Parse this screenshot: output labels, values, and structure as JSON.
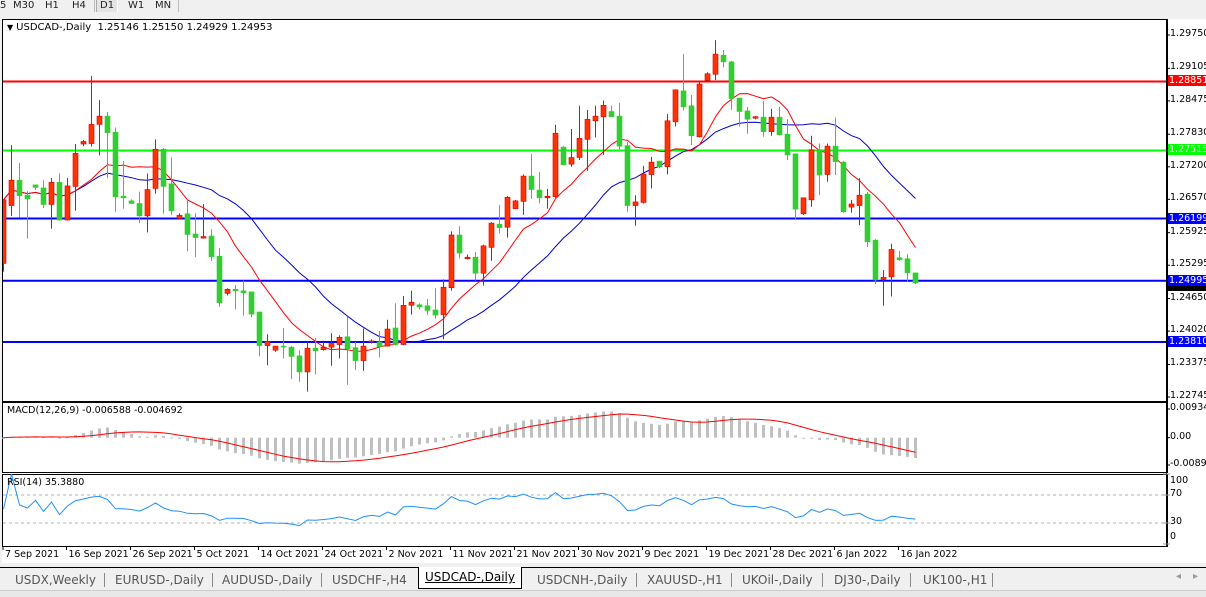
{
  "toolbar": {
    "timeframes": [
      "5",
      "M30",
      "H1",
      "H4",
      "D1",
      "W1",
      "MN"
    ],
    "active": "D1"
  },
  "chart": {
    "symbol_label": "USDCAD-,Daily",
    "ohlc_label": "1.25146 1.25150 1.24929 1.24953"
  },
  "chart_data": {
    "type": "candlestick",
    "symbol": "USDCAD-",
    "timeframe": "Daily",
    "colors": {
      "bull": "#ff3300",
      "bear": "#32cd32",
      "ma_fast": "#ff0000",
      "ma_slow": "#0000cd",
      "background": "#ffffff"
    },
    "ylim": [
      1.22745,
      1.2975
    ],
    "price_ticks": [
      "1.29750",
      "1.29105",
      "1.28475",
      "1.27830",
      "1.27200",
      "1.26570",
      "1.25925",
      "1.25295",
      "1.24650",
      "1.24020",
      "1.23375",
      "1.22745"
    ],
    "hlines": [
      {
        "price": 1.28851,
        "label": "1.28851",
        "color": "#ff0000"
      },
      {
        "price": 1.27515,
        "label": "1.27515",
        "color": "#00ff00"
      },
      {
        "price": 1.26199,
        "label": "1.26199",
        "color": "#0000ff"
      },
      {
        "price": 1.24995,
        "label": "1.24995",
        "color": "#0000ff"
      },
      {
        "price": 1.2381,
        "label": "1.23810",
        "color": "#0000ff"
      }
    ],
    "date_labels": [
      "7 Sep 2021",
      "16 Sep 2021",
      "26 Sep 2021",
      "5 Oct 2021",
      "14 Oct 2021",
      "24 Oct 2021",
      "2 Nov 2021",
      "11 Nov 2021",
      "21 Nov 2021",
      "30 Nov 2021",
      "9 Dec 2021",
      "19 Dec 2021",
      "28 Dec 2021",
      "6 Jan 2022",
      "16 Jan 2022"
    ],
    "candles_ohlc": [
      [
        1.2533,
        1.2656,
        1.2517,
        1.2656
      ],
      [
        1.2645,
        1.2762,
        1.2625,
        1.2694
      ],
      [
        1.2694,
        1.2727,
        1.2622,
        1.2664
      ],
      [
        1.2665,
        1.2673,
        1.2581,
        1.2658
      ],
      [
        1.2685,
        1.2685,
        1.2675,
        1.268
      ],
      [
        1.2679,
        1.2694,
        1.264,
        1.2647
      ],
      [
        1.2647,
        1.2698,
        1.26,
        1.269
      ],
      [
        1.269,
        1.2707,
        1.2616,
        1.2617
      ],
      [
        1.2617,
        1.2698,
        1.2616,
        1.2683
      ],
      [
        1.2682,
        1.2764,
        1.2635,
        1.2746
      ],
      [
        1.2764,
        1.2772,
        1.276,
        1.2769
      ],
      [
        1.2765,
        1.2896,
        1.2759,
        1.2802
      ],
      [
        1.2802,
        1.2849,
        1.2742,
        1.2818
      ],
      [
        1.2818,
        1.2826,
        1.2698,
        1.2786
      ],
      [
        1.2787,
        1.2796,
        1.2633,
        1.2662
      ],
      [
        1.2663,
        1.2731,
        1.2639,
        1.266
      ],
      [
        1.2654,
        1.2657,
        1.2648,
        1.2649
      ],
      [
        1.2649,
        1.2672,
        1.2611,
        1.2625
      ],
      [
        1.2625,
        1.2707,
        1.2593,
        1.2676
      ],
      [
        1.2678,
        1.2773,
        1.2668,
        1.2754
      ],
      [
        1.2754,
        1.2756,
        1.2629,
        1.2682
      ],
      [
        1.2687,
        1.2738,
        1.2627,
        1.2635
      ],
      [
        1.262,
        1.263,
        1.262,
        1.2626
      ],
      [
        1.2629,
        1.2656,
        1.2556,
        1.2589
      ],
      [
        1.259,
        1.263,
        1.2545,
        1.2583
      ],
      [
        1.2582,
        1.2648,
        1.2581,
        1.2585
      ],
      [
        1.2586,
        1.2599,
        1.2538,
        1.2546
      ],
      [
        1.2547,
        1.2563,
        1.2449,
        1.2457
      ],
      [
        1.2475,
        1.2485,
        1.2471,
        1.2483
      ],
      [
        1.2483,
        1.2491,
        1.2444,
        1.248
      ],
      [
        1.248,
        1.25,
        1.2432,
        1.2476
      ],
      [
        1.2478,
        1.2478,
        1.2429,
        1.2435
      ],
      [
        1.2439,
        1.2439,
        1.2353,
        1.2374
      ],
      [
        1.2374,
        1.2396,
        1.2336,
        1.2382
      ],
      [
        1.2365,
        1.2373,
        1.2362,
        1.2373
      ],
      [
        1.2373,
        1.2408,
        1.2349,
        1.2371
      ],
      [
        1.2371,
        1.2373,
        1.2309,
        1.2353
      ],
      [
        1.2354,
        1.2365,
        1.2304,
        1.2323
      ],
      [
        1.2323,
        1.2382,
        1.2285,
        1.2369
      ],
      [
        1.2369,
        1.2389,
        1.2318,
        1.2364
      ],
      [
        1.2366,
        1.238,
        1.2364,
        1.2371
      ],
      [
        1.2371,
        1.2398,
        1.2335,
        1.2378
      ],
      [
        1.2376,
        1.2394,
        1.2349,
        1.239
      ],
      [
        1.2391,
        1.243,
        1.2298,
        1.2368
      ],
      [
        1.237,
        1.2381,
        1.2327,
        1.2345
      ],
      [
        1.2345,
        1.2407,
        1.2325,
        1.2373
      ],
      [
        1.2381,
        1.2386,
        1.2378,
        1.2383
      ],
      [
        1.2381,
        1.2402,
        1.2351,
        1.2372
      ],
      [
        1.2373,
        1.2424,
        1.2372,
        1.2406
      ],
      [
        1.2408,
        1.2456,
        1.2374,
        1.2376
      ],
      [
        1.2376,
        1.247,
        1.2375,
        1.2452
      ],
      [
        1.2452,
        1.248,
        1.2434,
        1.2458
      ],
      [
        1.2453,
        1.2456,
        1.2444,
        1.2449
      ],
      [
        1.2451,
        1.2464,
        1.2433,
        1.2442
      ],
      [
        1.2443,
        1.2485,
        1.2426,
        1.2433
      ],
      [
        1.2434,
        1.2502,
        1.2386,
        1.2487
      ],
      [
        1.2486,
        1.2595,
        1.248,
        1.2588
      ],
      [
        1.2588,
        1.2605,
        1.2543,
        1.2553
      ],
      [
        1.2542,
        1.255,
        1.2541,
        1.2545
      ],
      [
        1.2545,
        1.2555,
        1.25,
        1.2514
      ],
      [
        1.2514,
        1.2569,
        1.249,
        1.2567
      ],
      [
        1.2564,
        1.2613,
        1.2538,
        1.2611
      ],
      [
        1.2609,
        1.2646,
        1.2591,
        1.2602
      ],
      [
        1.2603,
        1.2663,
        1.2583,
        1.2661
      ],
      [
        1.2639,
        1.2656,
        1.2638,
        1.2654
      ],
      [
        1.2653,
        1.2705,
        1.2627,
        1.2702
      ],
      [
        1.2702,
        1.2745,
        1.2658,
        1.2676
      ],
      [
        1.2675,
        1.271,
        1.2649,
        1.266
      ],
      [
        1.266,
        1.2677,
        1.2639,
        1.2663
      ],
      [
        1.2662,
        1.2801,
        1.266,
        1.2785
      ],
      [
        1.2758,
        1.276,
        1.2723,
        1.2724
      ],
      [
        1.2725,
        1.2793,
        1.272,
        1.2738
      ],
      [
        1.2738,
        1.2838,
        1.2733,
        1.2775
      ],
      [
        1.2773,
        1.283,
        1.2712,
        1.2812
      ],
      [
        1.2809,
        1.2838,
        1.2777,
        1.2818
      ],
      [
        1.2817,
        1.2848,
        1.2743,
        1.2839
      ],
      [
        1.2827,
        1.2838,
        1.2817,
        1.2817
      ],
      [
        1.2818,
        1.2844,
        1.2754,
        1.276
      ],
      [
        1.2761,
        1.2768,
        1.2633,
        1.2645
      ],
      [
        1.2645,
        1.2665,
        1.2606,
        1.2652
      ],
      [
        1.2651,
        1.2722,
        1.2649,
        1.2706
      ],
      [
        1.2705,
        1.2739,
        1.2678,
        1.2729
      ],
      [
        1.2731,
        1.2731,
        1.2717,
        1.272
      ],
      [
        1.272,
        1.2822,
        1.2705,
        1.2809
      ],
      [
        1.2807,
        1.2869,
        1.2798,
        1.2869
      ],
      [
        1.2867,
        1.2938,
        1.2829,
        1.2836
      ],
      [
        1.2838,
        1.2859,
        1.2762,
        1.278
      ],
      [
        1.2778,
        1.2885,
        1.2777,
        1.288
      ],
      [
        1.2887,
        1.2903,
        1.2887,
        1.29
      ],
      [
        1.2899,
        1.2965,
        1.2888,
        1.2938
      ],
      [
        1.2936,
        1.2946,
        1.2912,
        1.2923
      ],
      [
        1.2923,
        1.2925,
        1.283,
        1.2852
      ],
      [
        1.2853,
        1.2853,
        1.2798,
        1.2827
      ],
      [
        1.2828,
        1.2836,
        1.2784,
        1.2812
      ],
      [
        1.2814,
        1.2818,
        1.2812,
        1.2817
      ],
      [
        1.2816,
        1.2847,
        1.2778,
        1.2788
      ],
      [
        1.2788,
        1.2832,
        1.278,
        1.2816
      ],
      [
        1.2816,
        1.2836,
        1.2781,
        1.2782
      ],
      [
        1.2783,
        1.2812,
        1.2733,
        1.2743
      ],
      [
        1.2745,
        1.2745,
        1.2619,
        1.2638
      ],
      [
        1.2629,
        1.266,
        1.2627,
        1.266
      ],
      [
        1.2656,
        1.278,
        1.2643,
        1.2753
      ],
      [
        1.2753,
        1.2765,
        1.2665,
        1.2704
      ],
      [
        1.2705,
        1.2765,
        1.2691,
        1.276
      ],
      [
        1.276,
        1.2815,
        1.2704,
        1.273
      ],
      [
        1.2729,
        1.2731,
        1.2631,
        1.2633
      ],
      [
        1.2642,
        1.2656,
        1.2631,
        1.2648
      ],
      [
        1.2645,
        1.2698,
        1.2607,
        1.2665
      ],
      [
        1.2667,
        1.2671,
        1.2565,
        1.2575
      ],
      [
        1.2578,
        1.258,
        1.2493,
        1.2501
      ],
      [
        1.2502,
        1.252,
        1.2451,
        1.2506
      ],
      [
        1.2507,
        1.2571,
        1.2469,
        1.256
      ],
      [
        1.2544,
        1.2557,
        1.2538,
        1.254
      ],
      [
        1.2542,
        1.2551,
        1.2498,
        1.2515
      ],
      [
        1.25146,
        1.2515,
        1.24929,
        1.24953
      ]
    ],
    "macd": {
      "label": "MACD(12,26,9) -0.006588 -0.004692",
      "axis_labels": [
        "0.009345",
        "0.00",
        "-0.00890"
      ],
      "ylim": [
        -0.0089,
        0.009345
      ],
      "histogram_color": "#c0c0c0",
      "signal_color": "#ff0000"
    },
    "rsi": {
      "label": "RSI(14) 35.3880",
      "axis_labels": [
        "100",
        "70",
        "30",
        "0"
      ],
      "levels": [
        70,
        30
      ],
      "ylim": [
        0,
        100
      ],
      "line_color": "#1e90ff"
    }
  },
  "tabs": [
    {
      "label": "USDX,Weekly"
    },
    {
      "label": "EURUSD-,Daily"
    },
    {
      "label": "AUDUSD-,Daily"
    },
    {
      "label": "USDCHF-,H4"
    },
    {
      "label": "USDCAD-,Daily",
      "active": true
    },
    {
      "label": "USDCNH-,Daily"
    },
    {
      "label": "XAUUSD-,H1"
    },
    {
      "label": "UKOil-,Daily"
    },
    {
      "label": "DJ30-,Daily"
    },
    {
      "label": "UK100-,H1"
    }
  ],
  "tab_scroll": {
    "left_icon": "◂",
    "right_icon": "▸"
  }
}
